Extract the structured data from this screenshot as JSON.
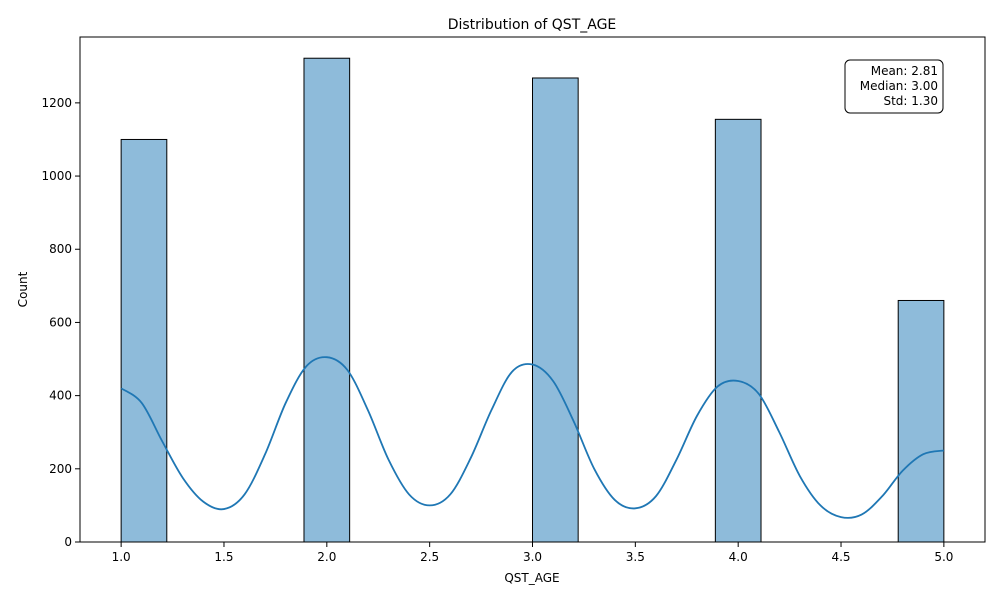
{
  "chart_data": {
    "type": "bar",
    "title": "Distribution of QST_AGE",
    "xlabel": "QST_AGE",
    "ylabel": "Count",
    "xlim": [
      0.8,
      5.2
    ],
    "ylim": [
      0,
      1380
    ],
    "x_ticks": [
      "1.0",
      "1.5",
      "2.0",
      "2.5",
      "3.0",
      "3.5",
      "4.0",
      "4.5",
      "5.0"
    ],
    "y_ticks": [
      "0",
      "200",
      "400",
      "600",
      "800",
      "1000",
      "1200"
    ],
    "bins": [
      {
        "start": 1.0,
        "end": 1.222,
        "count": 1100
      },
      {
        "start": 1.889,
        "end": 2.111,
        "count": 1322
      },
      {
        "start": 3.0,
        "end": 3.222,
        "count": 1268
      },
      {
        "start": 3.889,
        "end": 4.111,
        "count": 1155
      },
      {
        "start": 4.778,
        "end": 5.0,
        "count": 660
      }
    ],
    "kde": {
      "x": [
        1.0,
        1.1,
        1.2,
        1.3,
        1.4,
        1.5,
        1.6,
        1.7,
        1.8,
        1.9,
        2.0,
        2.1,
        2.2,
        2.3,
        2.4,
        2.5,
        2.6,
        2.7,
        2.8,
        2.9,
        3.0,
        3.1,
        3.2,
        3.3,
        3.4,
        3.5,
        3.6,
        3.7,
        3.8,
        3.9,
        4.0,
        4.1,
        4.2,
        4.3,
        4.4,
        4.5,
        4.6,
        4.7,
        4.8,
        4.9,
        5.0
      ],
      "y": [
        420,
        380,
        275,
        175,
        110,
        90,
        130,
        240,
        380,
        480,
        505,
        470,
        360,
        225,
        130,
        100,
        130,
        230,
        360,
        465,
        485,
        440,
        330,
        200,
        115,
        92,
        125,
        225,
        345,
        425,
        440,
        405,
        300,
        180,
        100,
        68,
        75,
        125,
        195,
        240,
        250
      ]
    },
    "colors": {
      "bar_fill": "#8ebbda",
      "bar_edge": "#000000",
      "kde_line": "#1f77b4"
    },
    "grid": false,
    "stats_box": {
      "position": "top-right",
      "lines": [
        "Mean: 2.81",
        "Median: 3.00",
        "Std: 1.30"
      ]
    }
  }
}
